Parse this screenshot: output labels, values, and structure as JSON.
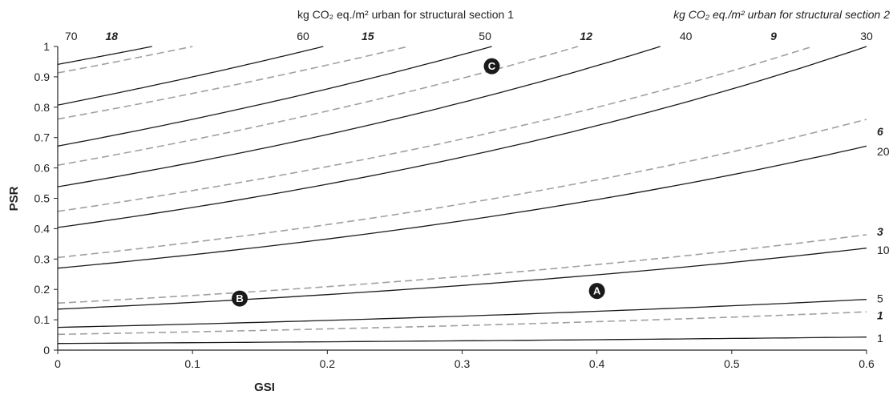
{
  "chart_data": {
    "type": "line",
    "xlabel": "GSI",
    "ylabel": "PSR",
    "xlim": [
      0,
      0.6
    ],
    "ylim": [
      0,
      1
    ],
    "x_ticks": [
      "0",
      "0.1",
      "0.2",
      "0.3",
      "0.4",
      "0.5",
      "0.6"
    ],
    "y_ticks": [
      "0",
      "0.1",
      "0.2",
      "0.3",
      "0.4",
      "0.5",
      "0.6",
      "0.7",
      "0.8",
      "0.9",
      "1"
    ],
    "top_heading_1": "kg CO₂ eq./m² urban for structural section 1",
    "top_heading_2": "kg CO₂ eq./m² urban for structural section 2",
    "grid": false,
    "series": [
      {
        "label": "1",
        "section": 1,
        "style": "solid",
        "x": [
          0,
          0.6
        ],
        "y": [
          0.022,
          0.043
        ]
      },
      {
        "label": "5",
        "section": 1,
        "style": "solid",
        "x": [
          0,
          0.6
        ],
        "y": [
          0.075,
          0.167
        ]
      },
      {
        "label": "10",
        "section": 1,
        "style": "solid",
        "x": [
          0,
          0.6
        ],
        "y": [
          0.135,
          0.336
        ]
      },
      {
        "label": "20",
        "section": 1,
        "style": "solid",
        "x": [
          0,
          0.6
        ],
        "y": [
          0.27,
          0.672
        ]
      },
      {
        "label": "",
        "section": 1,
        "style": "solid",
        "x": [
          0,
          0.6
        ],
        "y": [
          0.404,
          1.0
        ]
      },
      {
        "label": "30",
        "section": 1,
        "style": "solid",
        "x": [
          0,
          0.447
        ],
        "y": [
          0.538,
          1.0
        ]
      },
      {
        "label": "40",
        "section": 1,
        "style": "solid",
        "x": [
          0,
          0.322
        ],
        "y": [
          0.672,
          1.0
        ]
      },
      {
        "label": "50",
        "section": 1,
        "style": "solid",
        "x": [
          0,
          0.197
        ],
        "y": [
          0.807,
          1.0
        ]
      },
      {
        "label": "60",
        "section": 1,
        "style": "solid",
        "x": [
          0,
          0.07
        ],
        "y": [
          0.941,
          1.0
        ]
      },
      {
        "label": "1",
        "section": 2,
        "style": "dashed",
        "x": [
          0,
          0.6
        ],
        "y": [
          0.052,
          0.126
        ]
      },
      {
        "label": "3",
        "section": 2,
        "style": "dashed",
        "x": [
          0,
          0.6
        ],
        "y": [
          0.155,
          0.38
        ]
      },
      {
        "label": "",
        "section": 2,
        "style": "dashed",
        "x": [
          0,
          0.6
        ],
        "y": [
          0.305,
          0.76
        ]
      },
      {
        "label": "6",
        "section": 2,
        "style": "dashed",
        "x": [
          0,
          0.56
        ],
        "y": [
          0.457,
          1.0
        ]
      },
      {
        "label": "9",
        "section": 2,
        "style": "dashed",
        "x": [
          0,
          0.386
        ],
        "y": [
          0.609,
          1.0
        ]
      },
      {
        "label": "12",
        "section": 2,
        "style": "dashed",
        "x": [
          0,
          0.26
        ],
        "y": [
          0.761,
          1.0
        ]
      },
      {
        "label": "15",
        "section": 2,
        "style": "dashed",
        "x": [
          0,
          0.1
        ],
        "y": [
          0.913,
          1.0
        ]
      }
    ],
    "top_labels": [
      {
        "text": "70",
        "x": 0.01,
        "section": 1
      },
      {
        "text": "18",
        "x": 0.04,
        "section": 2
      },
      {
        "text": "60",
        "x": 0.182,
        "section": 1
      },
      {
        "text": "15",
        "x": 0.23,
        "section": 2
      },
      {
        "text": "50",
        "x": 0.317,
        "section": 1
      },
      {
        "text": "12",
        "x": 0.392,
        "section": 2
      },
      {
        "text": "40",
        "x": 0.466,
        "section": 1
      },
      {
        "text": "9",
        "x": 0.531,
        "section": 2
      },
      {
        "text": "30",
        "x": 0.6,
        "section": 1
      }
    ],
    "right_labels": [
      {
        "text": "6",
        "y": 0.72,
        "section": 2
      },
      {
        "text": "20",
        "y": 0.655,
        "section": 1
      },
      {
        "text": "3",
        "y": 0.39,
        "section": 2
      },
      {
        "text": "10",
        "y": 0.33,
        "section": 1
      },
      {
        "text": "5",
        "y": 0.17,
        "section": 1
      },
      {
        "text": "1",
        "y": 0.115,
        "section": 2
      },
      {
        "text": "1",
        "y": 0.04,
        "section": 1
      }
    ],
    "annotations": [
      {
        "text": "A",
        "x": 0.4,
        "y": 0.195
      },
      {
        "text": "B",
        "x": 0.135,
        "y": 0.17
      },
      {
        "text": "C",
        "x": 0.322,
        "y": 0.935
      }
    ]
  }
}
